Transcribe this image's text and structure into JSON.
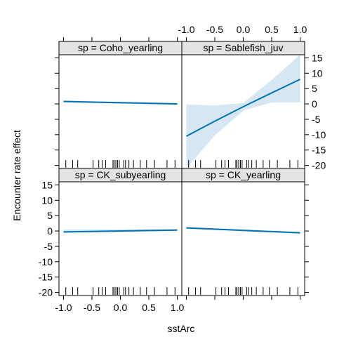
{
  "chart_data": {
    "type": "line",
    "layout": "lattice 2x2 effect plot with confidence bands and rug",
    "xlabel": "sstArc",
    "ylabel": "Encounter rate effect",
    "xlim": [
      -1.0,
      1.0
    ],
    "ylim": [
      -21,
      16
    ],
    "x_ticks": [
      -1.0,
      -0.5,
      0.0,
      0.5,
      1.0
    ],
    "x_tick_labels": [
      "-1.0",
      "-0.5",
      "0.0",
      "0.5",
      "1.0"
    ],
    "y_ticks": [
      -20,
      -15,
      -10,
      -5,
      0,
      5,
      10,
      15
    ],
    "y_tick_labels": [
      "-20",
      "-15",
      "-10",
      "-5",
      "0",
      "5",
      "10",
      "15"
    ],
    "colors": {
      "line": "#0072B2",
      "band": "#D6E6F3",
      "strip": "#e3e3e3"
    },
    "panels": [
      {
        "strip": "sp = Coho_yearling",
        "row": "top",
        "col": "left",
        "x": [
          -1.0,
          1.0
        ],
        "fit": [
          0.8,
          0.0
        ],
        "lower": [
          0.5,
          -0.3
        ],
        "upper": [
          1.1,
          0.3
        ]
      },
      {
        "strip": "sp = Sablefish_juv",
        "row": "top",
        "col": "right",
        "x": [
          -1.0,
          -0.5,
          0.0,
          0.5,
          1.0
        ],
        "fit": [
          -10.5,
          -5.6,
          -0.9,
          3.6,
          8.0
        ],
        "lower": [
          -21,
          -10.2,
          -2.2,
          0.5,
          0.5
        ],
        "upper": [
          -0.2,
          -0.5,
          0.3,
          7.8,
          16
        ]
      },
      {
        "strip": "sp = CK_subyearling",
        "row": "bottom",
        "col": "left",
        "x": [
          -1.0,
          1.0
        ],
        "fit": [
          -0.3,
          0.3
        ],
        "lower": [
          -0.6,
          0.0
        ],
        "upper": [
          0.5,
          0.6
        ]
      },
      {
        "strip": "sp = CK_yearling",
        "row": "bottom",
        "col": "right",
        "x": [
          -1.0,
          1.0
        ],
        "fit": [
          1.0,
          -0.6
        ],
        "lower": [
          0.7,
          -0.9
        ],
        "upper": [
          1.3,
          -0.3
        ]
      }
    ],
    "rug_x": [
      -0.96,
      -0.84,
      -0.75,
      -0.48,
      -0.38,
      -0.32,
      -0.26,
      -0.13,
      -0.11,
      -0.08,
      -0.05,
      -0.02,
      0.06,
      0.09,
      0.15,
      0.23,
      0.35,
      0.46,
      0.6,
      0.82,
      0.96
    ]
  }
}
